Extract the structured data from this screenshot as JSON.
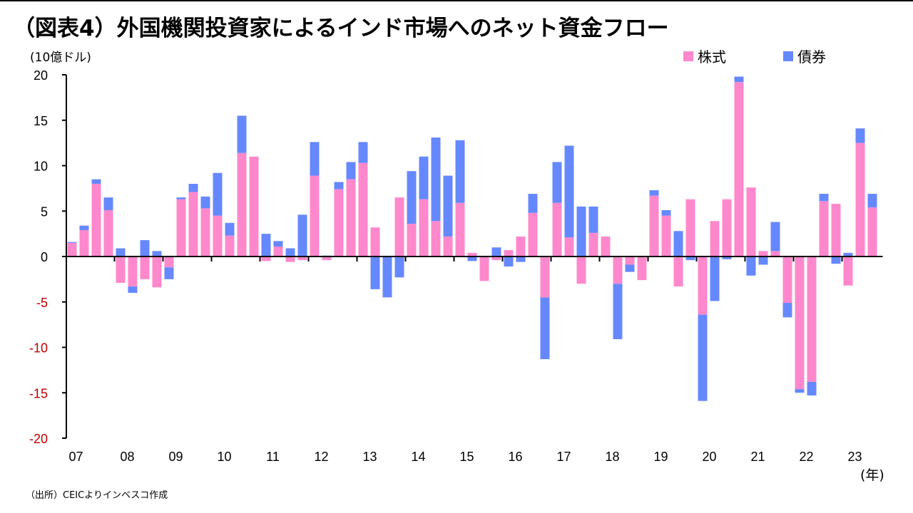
{
  "header": {
    "title": "（図表4）外国機関投資家によるインド市場へのネット資金フロー",
    "unit_label": "(10億ドル)",
    "x_unit_label": "(年)",
    "source": "（出所）CEICよりインベスコ作成"
  },
  "colors": {
    "equity": "#FF88CC",
    "bond": "#6688FF",
    "negative_tick_label": "#C00000",
    "axis": "#000000"
  },
  "chart_data": {
    "type": "bar",
    "stacked": true,
    "title": "（図表4）外国機関投資家によるインド市場へのネット資金フロー",
    "ylabel": "(10億ドル)",
    "xlabel": "(年)",
    "ylim": [
      -20,
      20
    ],
    "yticks": [
      20,
      15,
      10,
      5,
      0,
      -5,
      -10,
      -15,
      -20
    ],
    "ytick_labels": [
      "20",
      "15",
      "10",
      "5",
      "0",
      "-5",
      "-10",
      "-15",
      "-20"
    ],
    "xtick_labels": [
      "07",
      "08",
      "09",
      "10",
      "11",
      "12",
      "13",
      "14",
      "15",
      "16",
      "17",
      "18",
      "19",
      "20",
      "21",
      "22",
      "23"
    ],
    "frequency": "quarterly",
    "legend": {
      "placement": "top-right",
      "entries": [
        "株式",
        "債券"
      ]
    },
    "grid": false,
    "categories": [
      "2007Q1",
      "2007Q2",
      "2007Q3",
      "2007Q4",
      "2008Q1",
      "2008Q2",
      "2008Q3",
      "2008Q4",
      "2009Q1",
      "2009Q2",
      "2009Q3",
      "2009Q4",
      "2010Q1",
      "2010Q2",
      "2010Q3",
      "2010Q4",
      "2011Q1",
      "2011Q2",
      "2011Q3",
      "2011Q4",
      "2012Q1",
      "2012Q2",
      "2012Q3",
      "2012Q4",
      "2013Q1",
      "2013Q2",
      "2013Q3",
      "2013Q4",
      "2014Q1",
      "2014Q2",
      "2014Q3",
      "2014Q4",
      "2015Q1",
      "2015Q2",
      "2015Q3",
      "2015Q4",
      "2016Q1",
      "2016Q2",
      "2016Q3",
      "2016Q4",
      "2017Q1",
      "2017Q2",
      "2017Q3",
      "2017Q4",
      "2018Q1",
      "2018Q2",
      "2018Q3",
      "2018Q4",
      "2019Q1",
      "2019Q2",
      "2019Q3",
      "2019Q4",
      "2020Q1",
      "2020Q2",
      "2020Q3",
      "2020Q4",
      "2021Q1",
      "2021Q2",
      "2021Q3",
      "2021Q4",
      "2022Q1",
      "2022Q2",
      "2022Q3",
      "2022Q4",
      "2023Q1",
      "2023Q2",
      "2023Q3"
    ],
    "series": [
      {
        "name": "株式",
        "color_key": "equity",
        "values": [
          1.5,
          2.9,
          8.0,
          5.1,
          -2.9,
          -3.3,
          -2.5,
          -3.4,
          -1.2,
          6.3,
          7.1,
          5.3,
          4.5,
          2.3,
          11.4,
          11.0,
          -0.5,
          1.1,
          -0.6,
          -0.4,
          8.9,
          -0.4,
          7.4,
          8.5,
          10.3,
          3.2,
          0.0,
          6.5,
          3.6,
          6.3,
          3.9,
          2.2,
          5.9,
          0.4,
          -2.7,
          -0.4,
          0.7,
          2.2,
          4.8,
          -4.5,
          5.9,
          2.1,
          -3.0,
          2.6,
          2.2,
          -3.0,
          -0.9,
          -2.6,
          6.7,
          4.5,
          -3.3,
          6.3,
          -6.4,
          3.9,
          6.3,
          19.2,
          7.6,
          0.6,
          0.6,
          -5.1,
          -14.6,
          -13.8,
          6.1,
          5.8,
          -3.2,
          12.5,
          5.4
        ]
      },
      {
        "name": "債券",
        "color_key": "bond",
        "values": [
          0.1,
          0.5,
          0.5,
          1.4,
          0.9,
          -0.7,
          1.8,
          0.6,
          -1.3,
          0.2,
          0.9,
          1.3,
          4.7,
          1.4,
          4.1,
          0.0,
          2.5,
          0.6,
          0.9,
          4.6,
          3.7,
          0.1,
          0.8,
          1.9,
          2.3,
          -3.6,
          -4.5,
          -2.3,
          5.8,
          4.7,
          9.2,
          6.7,
          6.9,
          -0.5,
          0.0,
          1.0,
          -1.1,
          -0.6,
          2.1,
          -6.8,
          4.5,
          10.1,
          5.5,
          2.9,
          -0.1,
          -6.1,
          -0.8,
          0.0,
          0.6,
          0.6,
          2.8,
          -0.4,
          -9.5,
          -4.9,
          -0.3,
          0.6,
          -2.1,
          -0.9,
          3.2,
          -1.6,
          -0.4,
          -1.5,
          0.8,
          -0.8,
          0.4,
          1.6,
          1.5
        ]
      }
    ]
  }
}
